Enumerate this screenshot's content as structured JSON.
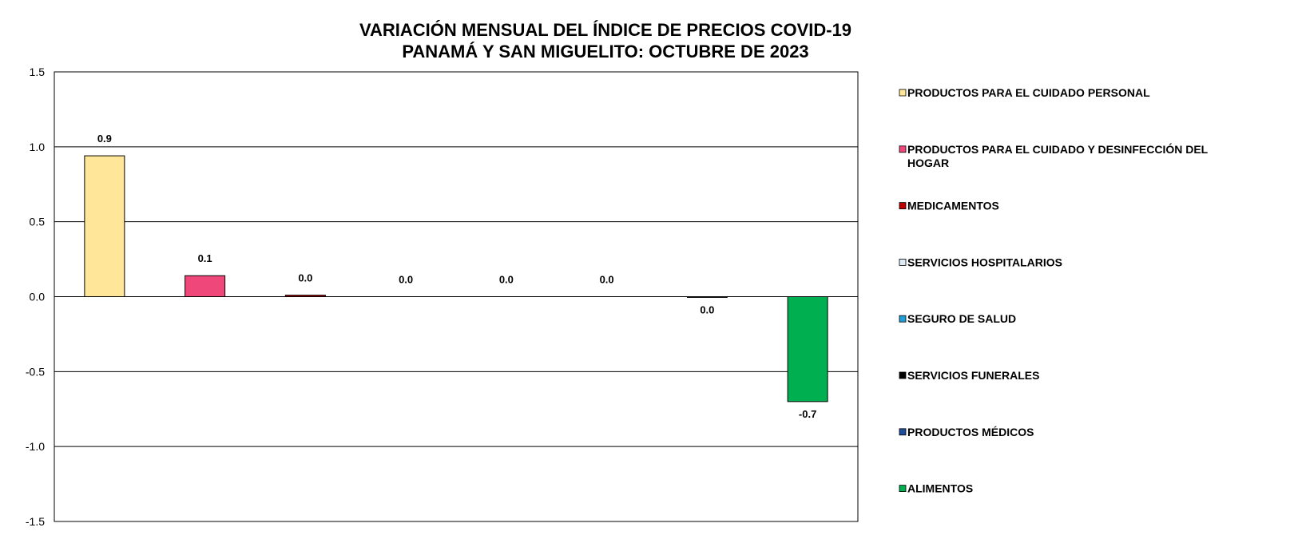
{
  "chart_data": {
    "type": "bar",
    "title": [
      "VARIACIÓN MENSUAL DEL ÍNDICE DE PRECIOS COVID-19",
      "PANAMÁ Y SAN MIGUELITO: OCTUBRE DE 2023"
    ],
    "ylim": [
      -1.5,
      1.5
    ],
    "yticks": [
      1.5,
      1.0,
      0.5,
      0.0,
      -0.5,
      -1.0,
      -1.5
    ],
    "ytick_labels": [
      "1.5",
      "1.0",
      "0.5",
      "0.0",
      "-0.5",
      "-1.0",
      "-1.5"
    ],
    "grid": true,
    "legend_position": "right",
    "series": [
      {
        "name": "PRODUCTOS PARA EL CUIDADO PERSONAL",
        "value": 0.94,
        "label": "0.9",
        "color": "#FFE699"
      },
      {
        "name": "PRODUCTOS PARA EL CUIDADO Y DESINFECCIÓN DEL HOGAR",
        "value": 0.14,
        "label": "0.1",
        "color": "#F0477A"
      },
      {
        "name": "MEDICAMENTOS",
        "value": 0.01,
        "label": "0.0",
        "color": "#C00000"
      },
      {
        "name": "SERVICIOS HOSPITALARIOS",
        "value": 0.0,
        "label": "0.0",
        "color": "#DDEBF7"
      },
      {
        "name": "SEGURO DE SALUD",
        "value": 0.0,
        "label": "0.0",
        "color": "#1F9ED8"
      },
      {
        "name": "SERVICIOS FUNERALES",
        "value": 0.0,
        "label": "0.0",
        "color": "#000000"
      },
      {
        "name": "PRODUCTOS MÉDICOS",
        "value": -0.005,
        "label": "0.0",
        "color": "#1F4E9C"
      },
      {
        "name": "ALIMENTOS",
        "value": -0.7,
        "label": "-0.7",
        "color": "#00B050"
      }
    ]
  }
}
